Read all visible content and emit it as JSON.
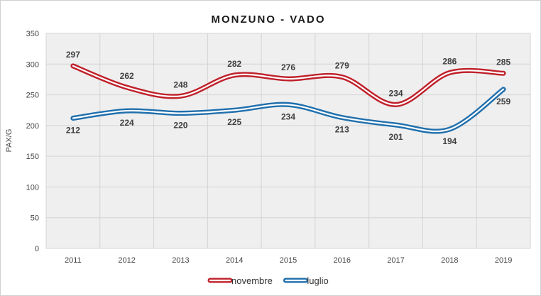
{
  "chart_data": {
    "type": "line",
    "title": "MONZUNO - VADO",
    "xlabel": "",
    "ylabel": "PAX/G",
    "x": [
      "2011",
      "2012",
      "2013",
      "2014",
      "2015",
      "2016",
      "2017",
      "2018",
      "2019"
    ],
    "ylim": [
      0,
      350
    ],
    "yticks": [
      0,
      50,
      100,
      150,
      200,
      250,
      300,
      350
    ],
    "grid": true,
    "legend_position": "bottom",
    "series": [
      {
        "name": "novembre",
        "color": "#c0202a",
        "values": [
          297,
          262,
          248,
          282,
          276,
          279,
          234,
          286,
          285
        ],
        "label_position": "above"
      },
      {
        "name": "luglio",
        "color": "#1f6fad",
        "values": [
          212,
          224,
          220,
          225,
          234,
          213,
          201,
          194,
          259
        ],
        "label_position": "below"
      }
    ]
  }
}
